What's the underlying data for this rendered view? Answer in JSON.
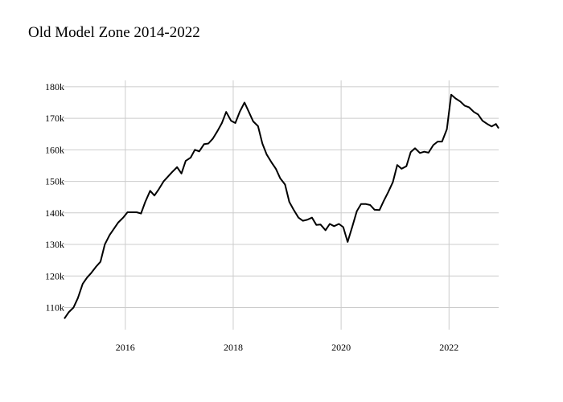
{
  "chart_data": {
    "type": "line",
    "title": "Old Model Zone 2014-2022",
    "xlabel": "",
    "ylabel": "",
    "xlim": [
      2014.87,
      2022.92
    ],
    "ylim": [
      103000,
      182000
    ],
    "x_ticks": [
      2016,
      2018,
      2020,
      2022
    ],
    "x_tick_labels": [
      "2016",
      "2018",
      "2020",
      "2022"
    ],
    "y_ticks": [
      110000,
      120000,
      130000,
      140000,
      150000,
      160000,
      170000,
      180000
    ],
    "y_tick_labels": [
      "110k",
      "120k",
      "130k",
      "140k",
      "150k",
      "160k",
      "170k",
      "180k"
    ],
    "grid": true,
    "legend": "none",
    "line_color": "#000000",
    "series": [
      {
        "x": [
          2014.87,
          2014.95,
          2015.04,
          2015.12,
          2015.21,
          2015.29,
          2015.37,
          2015.46,
          2015.54,
          2015.62,
          2015.71,
          2015.79,
          2015.87,
          2015.96,
          2016.04,
          2016.12,
          2016.21,
          2016.29,
          2016.37,
          2016.46,
          2016.54,
          2016.62,
          2016.71,
          2016.79,
          2016.87,
          2016.96,
          2017.04,
          2017.12,
          2017.21,
          2017.29,
          2017.37,
          2017.46,
          2017.54,
          2017.62,
          2017.71,
          2017.79,
          2017.87,
          2017.96,
          2018.04,
          2018.12,
          2018.21,
          2018.29,
          2018.37,
          2018.46,
          2018.54,
          2018.62,
          2018.71,
          2018.79,
          2018.87,
          2018.96,
          2019.04,
          2019.12,
          2019.21,
          2019.29,
          2019.37,
          2019.46,
          2019.54,
          2019.62,
          2019.71,
          2019.79,
          2019.87,
          2019.96,
          2020.04,
          2020.12,
          2020.21,
          2020.29,
          2020.37,
          2020.46,
          2020.54,
          2020.62,
          2020.71,
          2020.79,
          2020.87,
          2020.96,
          2021.04,
          2021.12,
          2021.21,
          2021.29,
          2021.37,
          2021.46,
          2021.54,
          2021.62,
          2021.71,
          2021.79,
          2021.87,
          2021.96,
          2022.04,
          2022.12,
          2022.21,
          2022.29,
          2022.37,
          2022.46,
          2022.54,
          2022.62,
          2022.71,
          2022.79,
          2022.87,
          2022.92
        ],
        "values": [
          106500,
          108500,
          110000,
          113000,
          117500,
          119500,
          121000,
          123000,
          124500,
          130000,
          133000,
          135000,
          137000,
          138500,
          140200,
          140200,
          140200,
          139800,
          143500,
          147000,
          145500,
          147500,
          150000,
          151500,
          153000,
          154500,
          152500,
          156500,
          157500,
          160000,
          159500,
          161800,
          162000,
          163500,
          166000,
          168500,
          172000,
          169200,
          168500,
          172000,
          175000,
          172000,
          169000,
          167500,
          162000,
          158500,
          156000,
          154000,
          151000,
          149000,
          143500,
          141000,
          138500,
          137500,
          137800,
          138500,
          136200,
          136300,
          134500,
          136500,
          135800,
          136500,
          135500,
          130800,
          135800,
          140500,
          142800,
          142800,
          142500,
          141000,
          140900,
          143800,
          146500,
          149800,
          155200,
          154000,
          154800,
          159300,
          160500,
          159000,
          159400,
          159100,
          161500,
          162600,
          162600,
          166500,
          177500,
          176300,
          175300,
          174000,
          173500,
          172000,
          171200,
          169200,
          168200,
          167400,
          168200,
          166800
        ]
      }
    ]
  }
}
